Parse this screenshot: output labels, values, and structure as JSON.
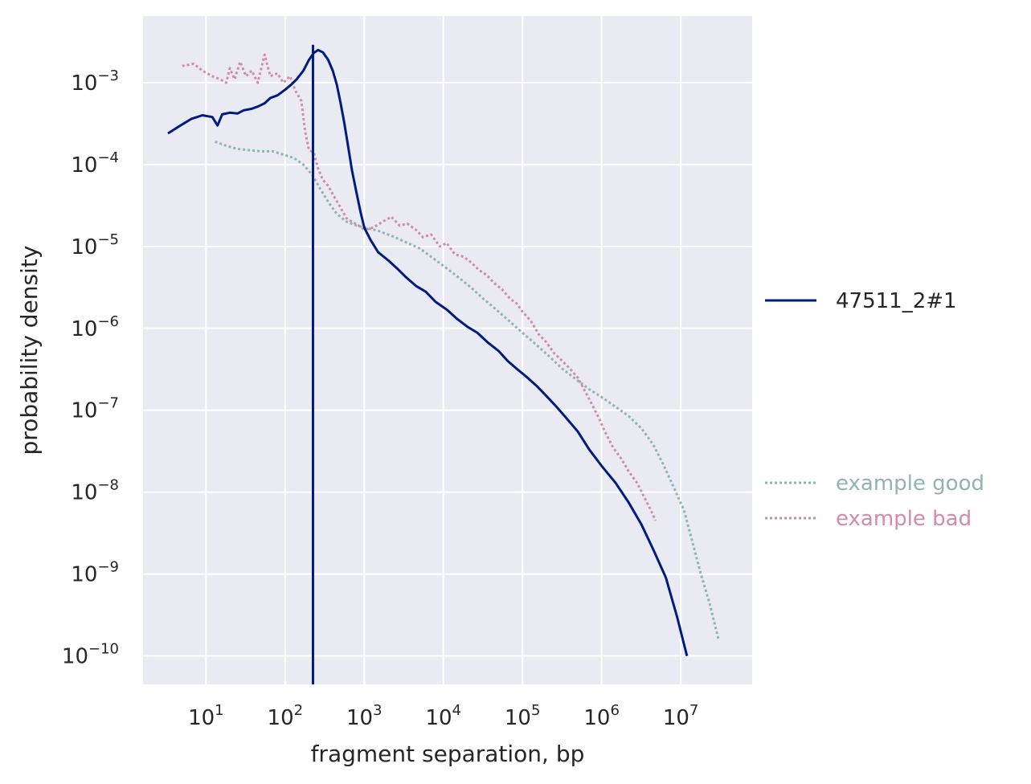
{
  "chart_data": {
    "type": "line",
    "xscale": "log",
    "yscale": "log",
    "xlabel": "fragment separation, bp",
    "ylabel": "probability density",
    "xlim": [
      1.6,
      80000000
    ],
    "ylim": [
      4.5e-11,
      0.0065
    ],
    "grid": true,
    "x_ticks": [
      {
        "base": "10",
        "exp": "1",
        "value": 10
      },
      {
        "base": "10",
        "exp": "2",
        "value": 100
      },
      {
        "base": "10",
        "exp": "3",
        "value": 1000
      },
      {
        "base": "10",
        "exp": "4",
        "value": 10000
      },
      {
        "base": "10",
        "exp": "5",
        "value": 100000
      },
      {
        "base": "10",
        "exp": "6",
        "value": 1000000
      },
      {
        "base": "10",
        "exp": "7",
        "value": 10000000
      }
    ],
    "y_ticks": [
      {
        "base": "10",
        "exp": "−3",
        "value": 0.001
      },
      {
        "base": "10",
        "exp": "−4",
        "value": 0.0001
      },
      {
        "base": "10",
        "exp": "−5",
        "value": 1e-05
      },
      {
        "base": "10",
        "exp": "−6",
        "value": 1e-06
      },
      {
        "base": "10",
        "exp": "−7",
        "value": 1e-07
      },
      {
        "base": "10",
        "exp": "−8",
        "value": 1e-08
      },
      {
        "base": "10",
        "exp": "−9",
        "value": 1e-09
      },
      {
        "base": "10",
        "exp": "−10",
        "value": 1e-10
      }
    ],
    "vline": {
      "x": 225,
      "color": "#001c7f"
    },
    "series": [
      {
        "name": "47511_2#1",
        "color": "#001c7f",
        "style": "solid",
        "points": [
          [
            3.3,
            0.00024
          ],
          [
            4.5,
            0.00029
          ],
          [
            6.5,
            0.00036
          ],
          [
            9,
            0.0004
          ],
          [
            12,
            0.00038
          ],
          [
            14,
            0.0003
          ],
          [
            16,
            0.00041
          ],
          [
            20,
            0.00043
          ],
          [
            25,
            0.00042
          ],
          [
            30,
            0.00046
          ],
          [
            38,
            0.00048
          ],
          [
            45,
            0.00051
          ],
          [
            55,
            0.00056
          ],
          [
            65,
            0.00065
          ],
          [
            80,
            0.0007
          ],
          [
            100,
            0.00082
          ],
          [
            120,
            0.00095
          ],
          [
            140,
            0.0011
          ],
          [
            170,
            0.0014
          ],
          [
            200,
            0.0019
          ],
          [
            230,
            0.0023
          ],
          [
            260,
            0.0025
          ],
          [
            300,
            0.00235
          ],
          [
            350,
            0.0019
          ],
          [
            400,
            0.0014
          ],
          [
            450,
            0.00095
          ],
          [
            500,
            0.00058
          ],
          [
            560,
            0.00032
          ],
          [
            630,
            0.00016
          ],
          [
            700,
            8.5e-05
          ],
          [
            800,
            4.5e-05
          ],
          [
            900,
            2.6e-05
          ],
          [
            1000,
            1.7e-05
          ],
          [
            1200,
            1.2e-05
          ],
          [
            1500,
            8.5e-06
          ],
          [
            2000,
            6.8e-06
          ],
          [
            2600,
            5.4e-06
          ],
          [
            3300,
            4.3e-06
          ],
          [
            4500,
            3.3e-06
          ],
          [
            6000,
            2.8e-06
          ],
          [
            8000,
            2.1e-06
          ],
          [
            11000,
            1.7e-06
          ],
          [
            15000,
            1.3e-06
          ],
          [
            20000,
            1.05e-06
          ],
          [
            27000,
            8.8e-07
          ],
          [
            36000,
            6.8e-07
          ],
          [
            50000,
            5.3e-07
          ],
          [
            65000,
            4e-07
          ],
          [
            85000,
            3.2e-07
          ],
          [
            110000,
            2.6e-07
          ],
          [
            150000,
            2e-07
          ],
          [
            200000,
            1.5e-07
          ],
          [
            270000,
            1.1e-07
          ],
          [
            360000,
            8e-08
          ],
          [
            500000,
            5.5e-08
          ],
          [
            700000,
            3.3e-08
          ],
          [
            1000000,
            2.1e-08
          ],
          [
            1500000,
            1.3e-08
          ],
          [
            2200000,
            7.5e-09
          ],
          [
            3200000,
            4e-09
          ],
          [
            4500000,
            2e-09
          ],
          [
            6500000,
            9e-10
          ],
          [
            9000000,
            3e-10
          ],
          [
            12000000,
            1e-10
          ]
        ]
      },
      {
        "name": "example good",
        "color": "#8fb5ae",
        "style": "dotted",
        "points": [
          [
            13,
            0.00019
          ],
          [
            18,
            0.00017
          ],
          [
            25,
            0.000155
          ],
          [
            35,
            0.00015
          ],
          [
            50,
            0.000145
          ],
          [
            70,
            0.000145
          ],
          [
            100,
            0.00013
          ],
          [
            130,
            0.00012
          ],
          [
            170,
            0.0001
          ],
          [
            220,
            7.5e-05
          ],
          [
            280,
            5e-05
          ],
          [
            350,
            3.5e-05
          ],
          [
            450,
            2.5e-05
          ],
          [
            600,
            2e-05
          ],
          [
            800,
            1.8e-05
          ],
          [
            1000,
            1.7e-05
          ],
          [
            1500,
            1.55e-05
          ],
          [
            2200,
            1.35e-05
          ],
          [
            3200,
            1.15e-05
          ],
          [
            5000,
            9.5e-06
          ],
          [
            7000,
            7.5e-06
          ],
          [
            10000,
            5.8e-06
          ],
          [
            15000,
            4.3e-06
          ],
          [
            22000,
            3.2e-06
          ],
          [
            32000,
            2.3e-06
          ],
          [
            50000,
            1.6e-06
          ],
          [
            70000,
            1.2e-06
          ],
          [
            100000,
            8.8e-07
          ],
          [
            150000,
            6.3e-07
          ],
          [
            220000,
            4.5e-07
          ],
          [
            320000,
            3.2e-07
          ],
          [
            500000,
            2.3e-07
          ],
          [
            700000,
            1.8e-07
          ],
          [
            1000000,
            1.45e-07
          ],
          [
            1500000,
            1.1e-07
          ],
          [
            2200000,
            8.5e-08
          ],
          [
            3200000,
            6e-08
          ],
          [
            4500000,
            3.8e-08
          ],
          [
            6000000,
            2.2e-08
          ],
          [
            8000000,
            1.2e-08
          ],
          [
            11000000,
            6e-09
          ],
          [
            14000000,
            2.5e-09
          ],
          [
            18000000,
            1e-09
          ],
          [
            23000000,
            4.5e-10
          ],
          [
            30000000,
            1.6e-10
          ]
        ]
      },
      {
        "name": "example bad",
        "color": "#d08ca8",
        "style": "dotted",
        "points": [
          [
            5,
            0.0016
          ],
          [
            7,
            0.0017
          ],
          [
            9,
            0.0014
          ],
          [
            12,
            0.0012
          ],
          [
            15,
            0.0011
          ],
          [
            18,
            0.001
          ],
          [
            20,
            0.0015
          ],
          [
            23,
            0.0011
          ],
          [
            27,
            0.0018
          ],
          [
            32,
            0.0012
          ],
          [
            38,
            0.0014
          ],
          [
            45,
            0.001
          ],
          [
            55,
            0.0022
          ],
          [
            65,
            0.0012
          ],
          [
            80,
            0.0013
          ],
          [
            95,
            0.001
          ],
          [
            115,
            0.0012
          ],
          [
            135,
            0.0008
          ],
          [
            160,
            0.0006
          ],
          [
            180,
            0.00025
          ],
          [
            200,
            0.00015
          ],
          [
            230,
            0.00014
          ],
          [
            260,
            9e-05
          ],
          [
            300,
            6.5e-05
          ],
          [
            350,
            5.5e-05
          ],
          [
            420,
            4e-05
          ],
          [
            500,
            3e-05
          ],
          [
            600,
            2.2e-05
          ],
          [
            700,
            2e-05
          ],
          [
            850,
            1.8e-05
          ],
          [
            1000,
            1.6e-05
          ],
          [
            1300,
            1.7e-05
          ],
          [
            1700,
            2e-05
          ],
          [
            2200,
            2.3e-05
          ],
          [
            2800,
            1.8e-05
          ],
          [
            3500,
            1.9e-05
          ],
          [
            4500,
            1.6e-05
          ],
          [
            5500,
            1.3e-05
          ],
          [
            7000,
            1.4e-05
          ],
          [
            9000,
            1e-05
          ],
          [
            11000,
            1.1e-05
          ],
          [
            14000,
            8e-06
          ],
          [
            18000,
            7.5e-06
          ],
          [
            22000,
            6.5e-06
          ],
          [
            28000,
            5.2e-06
          ],
          [
            35000,
            4.5e-06
          ],
          [
            45000,
            3.5e-06
          ],
          [
            55000,
            3e-06
          ],
          [
            70000,
            2.3e-06
          ],
          [
            85000,
            2e-06
          ],
          [
            100000,
            1.6e-06
          ],
          [
            130000,
            1.2e-06
          ],
          [
            160000,
            8.5e-07
          ],
          [
            200000,
            6.8e-07
          ],
          [
            250000,
            5e-07
          ],
          [
            320000,
            4e-07
          ],
          [
            400000,
            3.2e-07
          ],
          [
            500000,
            2.5e-07
          ],
          [
            600000,
            1.8e-07
          ],
          [
            750000,
            1.2e-07
          ],
          [
            900000,
            8.5e-08
          ],
          [
            1100000,
            5.5e-08
          ],
          [
            1400000,
            3.5e-08
          ],
          [
            1800000,
            2.5e-08
          ],
          [
            2200000,
            1.8e-08
          ],
          [
            2800000,
            1.3e-08
          ],
          [
            3500000,
            8.5e-09
          ],
          [
            4200000,
            6e-09
          ],
          [
            4800000,
            4.5e-09
          ]
        ]
      }
    ]
  }
}
